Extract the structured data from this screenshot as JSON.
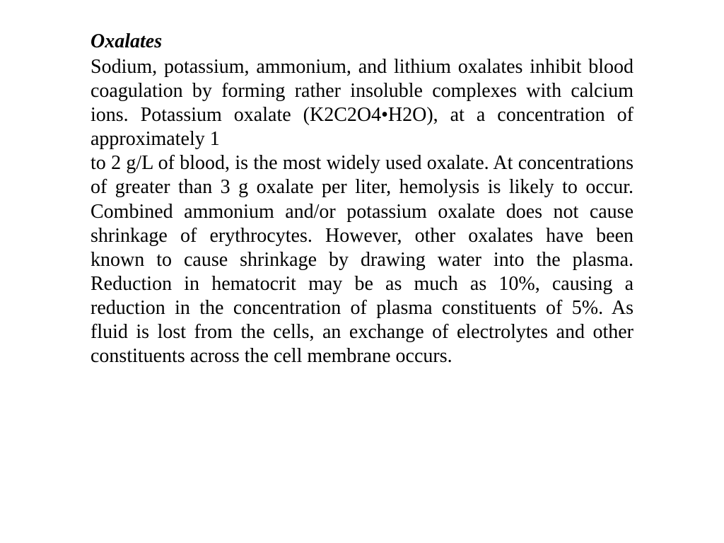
{
  "document": {
    "background_color": "#ffffff",
    "text_color": "#000000",
    "font_family": "Times New Roman",
    "heading": {
      "text": "Oxalates",
      "font_size": 28,
      "font_weight": "bold",
      "font_style": "italic"
    },
    "paragraph1": {
      "text": "Sodium, potassium, ammonium, and lithium oxalates inhibit blood coagulation by forming rather insoluble complexes with calcium ions. Potassium oxalate (K2C2O4•H2O), at a concentration of approximately 1",
      "font_size": 28,
      "text_align": "justify"
    },
    "paragraph2": {
      "text": "to 2 g/L of blood, is the most widely used oxalate. At concentrations of greater than 3 g oxalate per liter, hemolysis is likely to occur. Combined ammonium and/or potassium oxalate does not cause shrinkage of erythrocytes. However, other oxalates have been known to cause shrinkage by drawing water into the plasma. Reduction in hematocrit may be as much as 10%, causing a reduction in the concentration of plasma constituents of 5%. As fluid is lost from the cells, an exchange of electrolytes and other constituents across the cell membrane occurs.",
      "font_size": 28,
      "text_align": "justify"
    }
  }
}
